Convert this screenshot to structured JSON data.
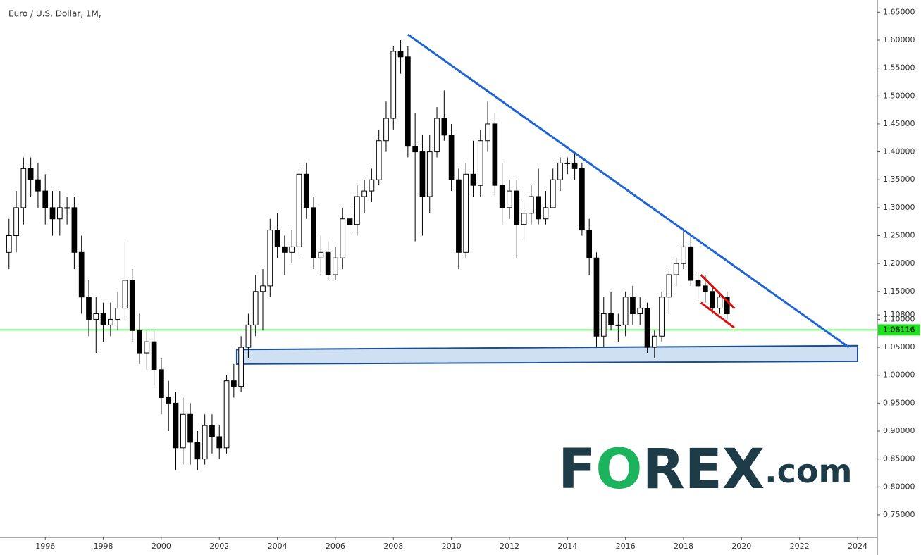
{
  "chart_data": {
    "type": "candlestick",
    "title": "Euro / U.S. Dollar, 1M,",
    "x": [
      1994.75,
      1995,
      1995.25,
      1995.5,
      1995.75,
      1996,
      1996.25,
      1996.5,
      1996.75,
      1997,
      1997.25,
      1997.5,
      1997.75,
      1998,
      1998.25,
      1998.5,
      1998.75,
      1999,
      1999.25,
      1999.5,
      1999.75,
      2000,
      2000.25,
      2000.5,
      2000.75,
      2001,
      2001.25,
      2001.5,
      2001.75,
      2002,
      2002.25,
      2002.5,
      2002.75,
      2003,
      2003.25,
      2003.5,
      2003.75,
      2004,
      2004.25,
      2004.5,
      2004.75,
      2005,
      2005.25,
      2005.5,
      2005.75,
      2006,
      2006.25,
      2006.5,
      2006.75,
      2007,
      2007.25,
      2007.5,
      2007.75,
      2008,
      2008.25,
      2008.5,
      2008.75,
      2009,
      2009.25,
      2009.5,
      2009.75,
      2010,
      2010.25,
      2010.5,
      2010.75,
      2011,
      2011.25,
      2011.5,
      2011.75,
      2012,
      2012.25,
      2012.5,
      2012.75,
      2013,
      2013.25,
      2013.5,
      2013.75,
      2014,
      2014.25,
      2014.5,
      2014.75,
      2015,
      2015.25,
      2015.5,
      2015.75,
      2016,
      2016.25,
      2016.5,
      2016.75,
      2017,
      2017.25,
      2017.5,
      2017.75,
      2018,
      2018.25,
      2018.5,
      2018.75,
      2019,
      2019.25,
      2019.5
    ],
    "open": [
      1.22,
      1.25,
      1.3,
      1.37,
      1.35,
      1.33,
      1.3,
      1.28,
      1.3,
      1.3,
      1.22,
      1.14,
      1.1,
      1.11,
      1.09,
      1.1,
      1.12,
      1.17,
      1.08,
      1.04,
      1.06,
      1.01,
      0.96,
      0.95,
      0.87,
      0.93,
      0.88,
      0.85,
      0.91,
      0.89,
      0.87,
      0.99,
      0.98,
      1.05,
      1.09,
      1.15,
      1.16,
      1.26,
      1.23,
      1.22,
      1.23,
      1.36,
      1.3,
      1.21,
      1.22,
      1.18,
      1.21,
      1.28,
      1.27,
      1.32,
      1.33,
      1.35,
      1.42,
      1.46,
      1.58,
      1.57,
      1.41,
      1.4,
      1.32,
      1.4,
      1.46,
      1.43,
      1.35,
      1.22,
      1.36,
      1.34,
      1.42,
      1.45,
      1.34,
      1.3,
      1.33,
      1.27,
      1.29,
      1.32,
      1.28,
      1.3,
      1.35,
      1.38,
      1.38,
      1.37,
      1.26,
      1.21,
      1.07,
      1.11,
      1.09,
      1.09,
      1.14,
      1.11,
      1.12,
      1.05,
      1.07,
      1.14,
      1.18,
      1.2,
      1.23,
      1.17,
      1.16,
      1.15,
      1.12,
      1.14
    ],
    "high": [
      1.28,
      1.33,
      1.39,
      1.39,
      1.38,
      1.36,
      1.33,
      1.33,
      1.32,
      1.32,
      1.25,
      1.17,
      1.14,
      1.13,
      1.13,
      1.15,
      1.24,
      1.19,
      1.11,
      1.08,
      1.08,
      1.03,
      0.99,
      0.97,
      0.96,
      0.95,
      0.9,
      0.93,
      0.93,
      0.91,
      1.0,
      1.02,
      1.07,
      1.11,
      1.18,
      1.19,
      1.28,
      1.29,
      1.25,
      1.26,
      1.37,
      1.38,
      1.32,
      1.25,
      1.24,
      1.23,
      1.3,
      1.3,
      1.34,
      1.35,
      1.37,
      1.44,
      1.49,
      1.59,
      1.6,
      1.59,
      1.47,
      1.43,
      1.43,
      1.48,
      1.51,
      1.45,
      1.37,
      1.38,
      1.42,
      1.44,
      1.49,
      1.47,
      1.38,
      1.35,
      1.35,
      1.31,
      1.34,
      1.37,
      1.33,
      1.37,
      1.39,
      1.39,
      1.4,
      1.38,
      1.28,
      1.22,
      1.14,
      1.15,
      1.11,
      1.15,
      1.16,
      1.14,
      1.13,
      1.08,
      1.15,
      1.19,
      1.21,
      1.26,
      1.25,
      1.18,
      1.18,
      1.16,
      1.15,
      1.15
    ],
    "low": [
      1.19,
      1.22,
      1.27,
      1.32,
      1.3,
      1.27,
      1.25,
      1.25,
      1.27,
      1.19,
      1.11,
      1.07,
      1.04,
      1.06,
      1.07,
      1.08,
      1.1,
      1.06,
      1.02,
      1.01,
      0.98,
      0.93,
      0.9,
      0.83,
      0.84,
      0.84,
      0.83,
      0.84,
      0.86,
      0.85,
      0.86,
      0.96,
      0.97,
      1.03,
      1.07,
      1.08,
      1.14,
      1.21,
      1.18,
      1.2,
      1.21,
      1.28,
      1.19,
      1.18,
      1.17,
      1.17,
      1.19,
      1.25,
      1.25,
      1.29,
      1.31,
      1.34,
      1.4,
      1.44,
      1.54,
      1.39,
      1.24,
      1.25,
      1.29,
      1.39,
      1.42,
      1.33,
      1.19,
      1.21,
      1.32,
      1.32,
      1.4,
      1.32,
      1.27,
      1.28,
      1.21,
      1.24,
      1.27,
      1.27,
      1.27,
      1.3,
      1.33,
      1.36,
      1.35,
      1.25,
      1.18,
      1.05,
      1.05,
      1.08,
      1.06,
      1.07,
      1.09,
      1.09,
      1.04,
      1.03,
      1.06,
      1.11,
      1.16,
      1.19,
      1.16,
      1.13,
      1.13,
      1.11,
      1.11,
      1.1
    ],
    "close": [
      1.25,
      1.3,
      1.37,
      1.35,
      1.33,
      1.3,
      1.28,
      1.3,
      1.3,
      1.22,
      1.14,
      1.1,
      1.11,
      1.09,
      1.1,
      1.12,
      1.17,
      1.08,
      1.04,
      1.06,
      1.01,
      0.96,
      0.95,
      0.87,
      0.93,
      0.88,
      0.85,
      0.91,
      0.89,
      0.87,
      0.99,
      0.98,
      1.05,
      1.09,
      1.15,
      1.16,
      1.26,
      1.23,
      1.22,
      1.23,
      1.36,
      1.3,
      1.21,
      1.22,
      1.18,
      1.21,
      1.28,
      1.27,
      1.32,
      1.33,
      1.35,
      1.42,
      1.46,
      1.58,
      1.57,
      1.41,
      1.4,
      1.32,
      1.4,
      1.46,
      1.43,
      1.35,
      1.22,
      1.36,
      1.34,
      1.42,
      1.45,
      1.34,
      1.3,
      1.33,
      1.27,
      1.29,
      1.32,
      1.28,
      1.3,
      1.35,
      1.38,
      1.38,
      1.37,
      1.26,
      1.21,
      1.07,
      1.11,
      1.09,
      1.09,
      1.14,
      1.11,
      1.12,
      1.05,
      1.07,
      1.14,
      1.18,
      1.2,
      1.23,
      1.17,
      1.16,
      1.15,
      1.12,
      1.14,
      1.11
    ],
    "up_color": "#ffffff",
    "down_color": "#000000",
    "wick_color": "#000000",
    "xlim": [
      1994.44,
      2024.68
    ],
    "xticks": [
      1996,
      1998,
      2000,
      2002,
      2004,
      2006,
      2008,
      2010,
      2012,
      2014,
      2016,
      2018,
      2020,
      2022,
      2024
    ],
    "ylim": [
      0.7096,
      1.6719
    ],
    "yticks": [
      {
        "value": 0.75,
        "label": "0.75000"
      },
      {
        "value": 0.8,
        "label": "0.80000"
      },
      {
        "value": 0.85,
        "label": "0.85000"
      },
      {
        "value": 0.9,
        "label": "0.90000"
      },
      {
        "value": 0.95,
        "label": "0.95000"
      },
      {
        "value": 1.0,
        "label": "1.00000"
      },
      {
        "value": 1.05,
        "label": "1.05000"
      },
      {
        "value": 1.1,
        "label": "1.10000"
      },
      {
        "value": 1.15,
        "label": "1.15000"
      },
      {
        "value": 1.2,
        "label": "1.20000"
      },
      {
        "value": 1.25,
        "label": "1.25000"
      },
      {
        "value": 1.3,
        "label": "1.30000"
      },
      {
        "value": 1.35,
        "label": "1.35000"
      },
      {
        "value": 1.4,
        "label": "1.40000"
      },
      {
        "value": 1.45,
        "label": "1.45000"
      },
      {
        "value": 1.5,
        "label": "1.50000"
      },
      {
        "value": 1.55,
        "label": "1.55000"
      },
      {
        "value": 1.6,
        "label": "1.60000"
      },
      {
        "value": 1.65,
        "label": "1.65000"
      }
    ],
    "trendlines": [
      {
        "color": "#1e63d8",
        "points": [
          [
            2008.5,
            1.61
          ],
          [
            2023.7,
            1.05
          ]
        ]
      },
      {
        "color": "#e01010",
        "points": [
          [
            2018.6,
            1.18
          ],
          [
            2019.75,
            1.12
          ]
        ]
      },
      {
        "color": "#e01010",
        "points": [
          [
            2018.6,
            1.13
          ],
          [
            2019.75,
            1.085
          ]
        ]
      }
    ],
    "zone": {
      "color": "#1a4f95",
      "fill": "#cfe0f3",
      "points": [
        [
          2002.6,
          1.046
        ],
        [
          2024.0,
          1.053
        ],
        [
          2024.0,
          1.025
        ],
        [
          2002.6,
          1.02
        ]
      ]
    },
    "hline": {
      "value": 1.08116,
      "label": "1.08116",
      "color": "#22dd22"
    },
    "last_price": {
      "value": 1.108,
      "label": "1.10800"
    },
    "logo": [
      "F",
      "O",
      "REX",
      ".com"
    ]
  }
}
